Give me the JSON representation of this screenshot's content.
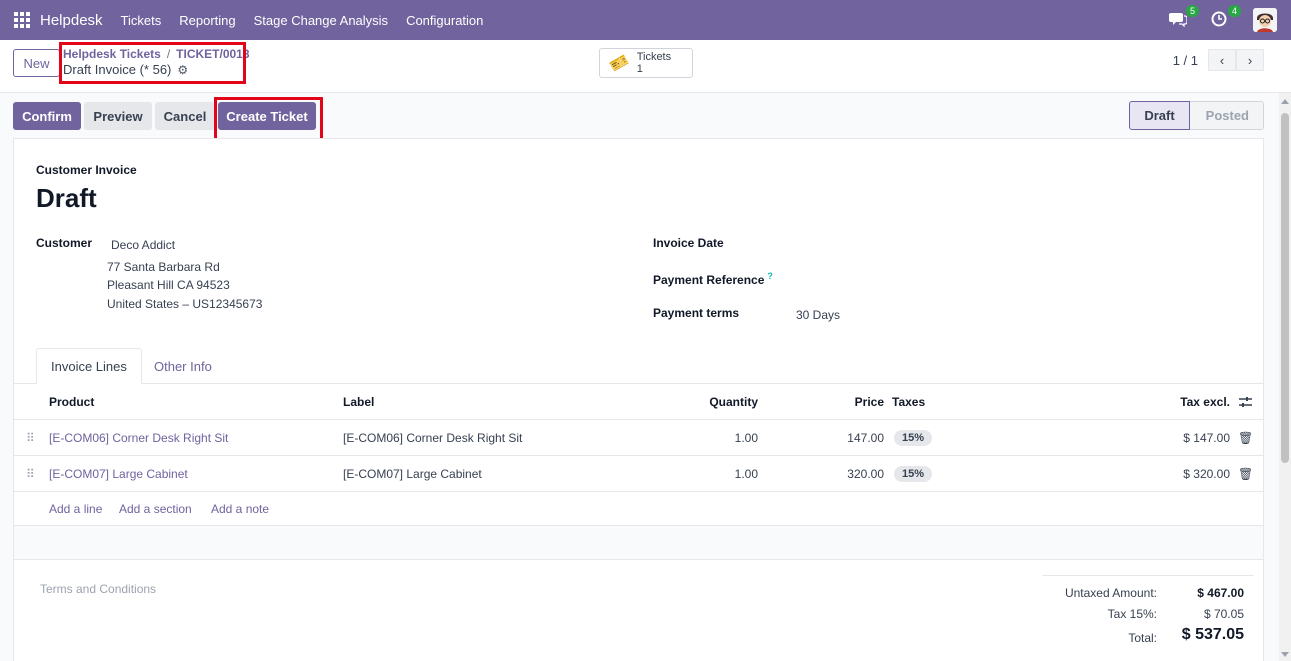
{
  "navbar": {
    "brand": "Helpdesk",
    "items": [
      "Tickets",
      "Reporting",
      "Stage Change Analysis",
      "Configuration"
    ],
    "messages_count": "5",
    "activities_count": "4",
    "accent": "#71639e"
  },
  "control": {
    "new_label": "New",
    "breadcrumb_parent": "Helpdesk Tickets",
    "breadcrumb_separator": "/",
    "breadcrumb_current": "TICKET/0013",
    "record_name": "Draft Invoice (* 56)",
    "smart_button": {
      "label": "Tickets",
      "count": "1"
    },
    "pager": "1 / 1"
  },
  "actions": {
    "confirm": "Confirm",
    "preview": "Preview",
    "cancel": "Cancel",
    "create_ticket": "Create Ticket"
  },
  "status": {
    "active": "Draft",
    "next": "Posted"
  },
  "invoice": {
    "type": "Customer Invoice",
    "title": "Draft",
    "customer_label": "Customer",
    "customer_name": "Deco Addict",
    "address": [
      "77 Santa Barbara Rd",
      "Pleasant Hill CA 94523",
      "United States – US12345673"
    ],
    "invoice_date_label": "Invoice Date",
    "payment_reference_label": "Payment Reference",
    "help_mark": "?",
    "payment_terms_label": "Payment terms",
    "payment_terms": "30 Days"
  },
  "tabs": {
    "lines": "Invoice Lines",
    "other": "Other Info"
  },
  "table": {
    "headers": {
      "product": "Product",
      "label": "Label",
      "quantity": "Quantity",
      "price": "Price",
      "taxes": "Taxes",
      "tax_excl": "Tax excl."
    },
    "rows": [
      {
        "product": "[E-COM06] Corner Desk Right Sit",
        "label": "[E-COM06] Corner Desk Right Sit",
        "quantity": "1.00",
        "price": "147.00",
        "tax": "15%",
        "subtotal": "$ 147.00"
      },
      {
        "product": "[E-COM07] Large Cabinet",
        "label": "[E-COM07] Large Cabinet",
        "quantity": "1.00",
        "price": "320.00",
        "tax": "15%",
        "subtotal": "$ 320.00"
      }
    ],
    "add_line": "Add a line",
    "add_section": "Add a section",
    "add_note": "Add a note"
  },
  "footer": {
    "terms": "Terms and Conditions",
    "untaxed_label": "Untaxed Amount:",
    "untaxed_value": "$ 467.00",
    "tax_label": "Tax 15%:",
    "tax_value": "$ 70.05",
    "total_label": "Total:",
    "total_value": "$ 537.05"
  }
}
